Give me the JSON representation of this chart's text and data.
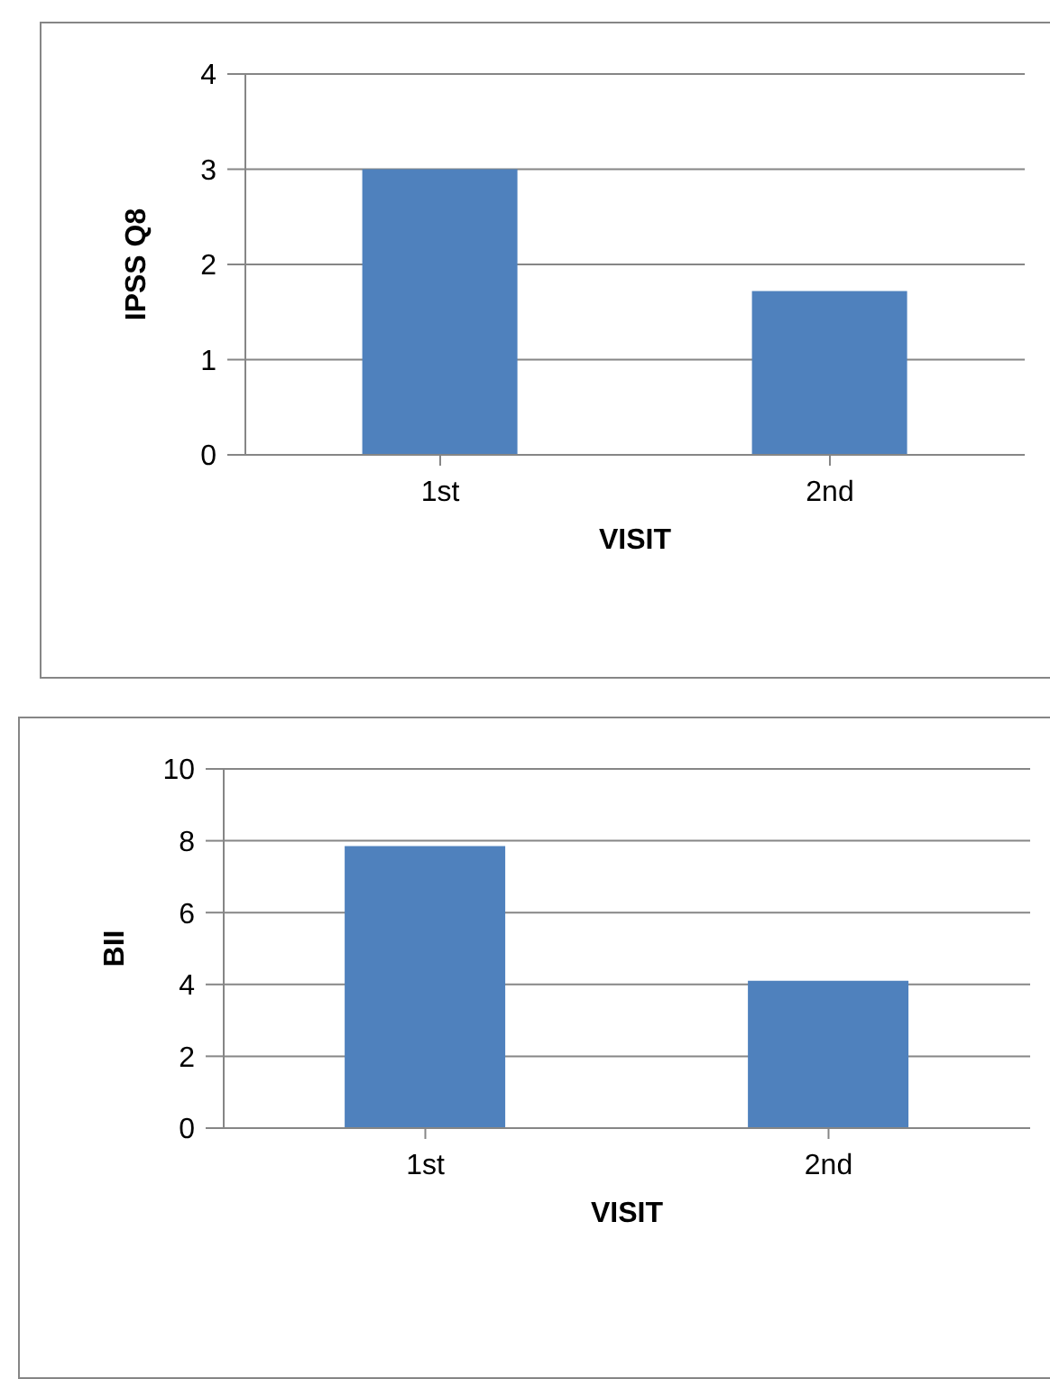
{
  "chart_data": [
    {
      "type": "bar",
      "categories": [
        "1st",
        "2nd"
      ],
      "values": [
        3.0,
        1.72
      ],
      "color": "#4f81bd",
      "xlabel": "VISIT",
      "ylabel": "IPSS Q8",
      "ylim": [
        0,
        4
      ],
      "yticks": [
        0,
        1,
        2,
        3,
        4
      ],
      "grid": "y"
    },
    {
      "type": "bar",
      "categories": [
        "1st",
        "2nd"
      ],
      "values": [
        7.85,
        4.1
      ],
      "color": "#4f81bd",
      "xlabel": "VISIT",
      "ylabel": "BII",
      "ylim": [
        0,
        10
      ],
      "yticks": [
        0,
        2,
        4,
        6,
        8,
        10
      ],
      "grid": "y"
    }
  ]
}
